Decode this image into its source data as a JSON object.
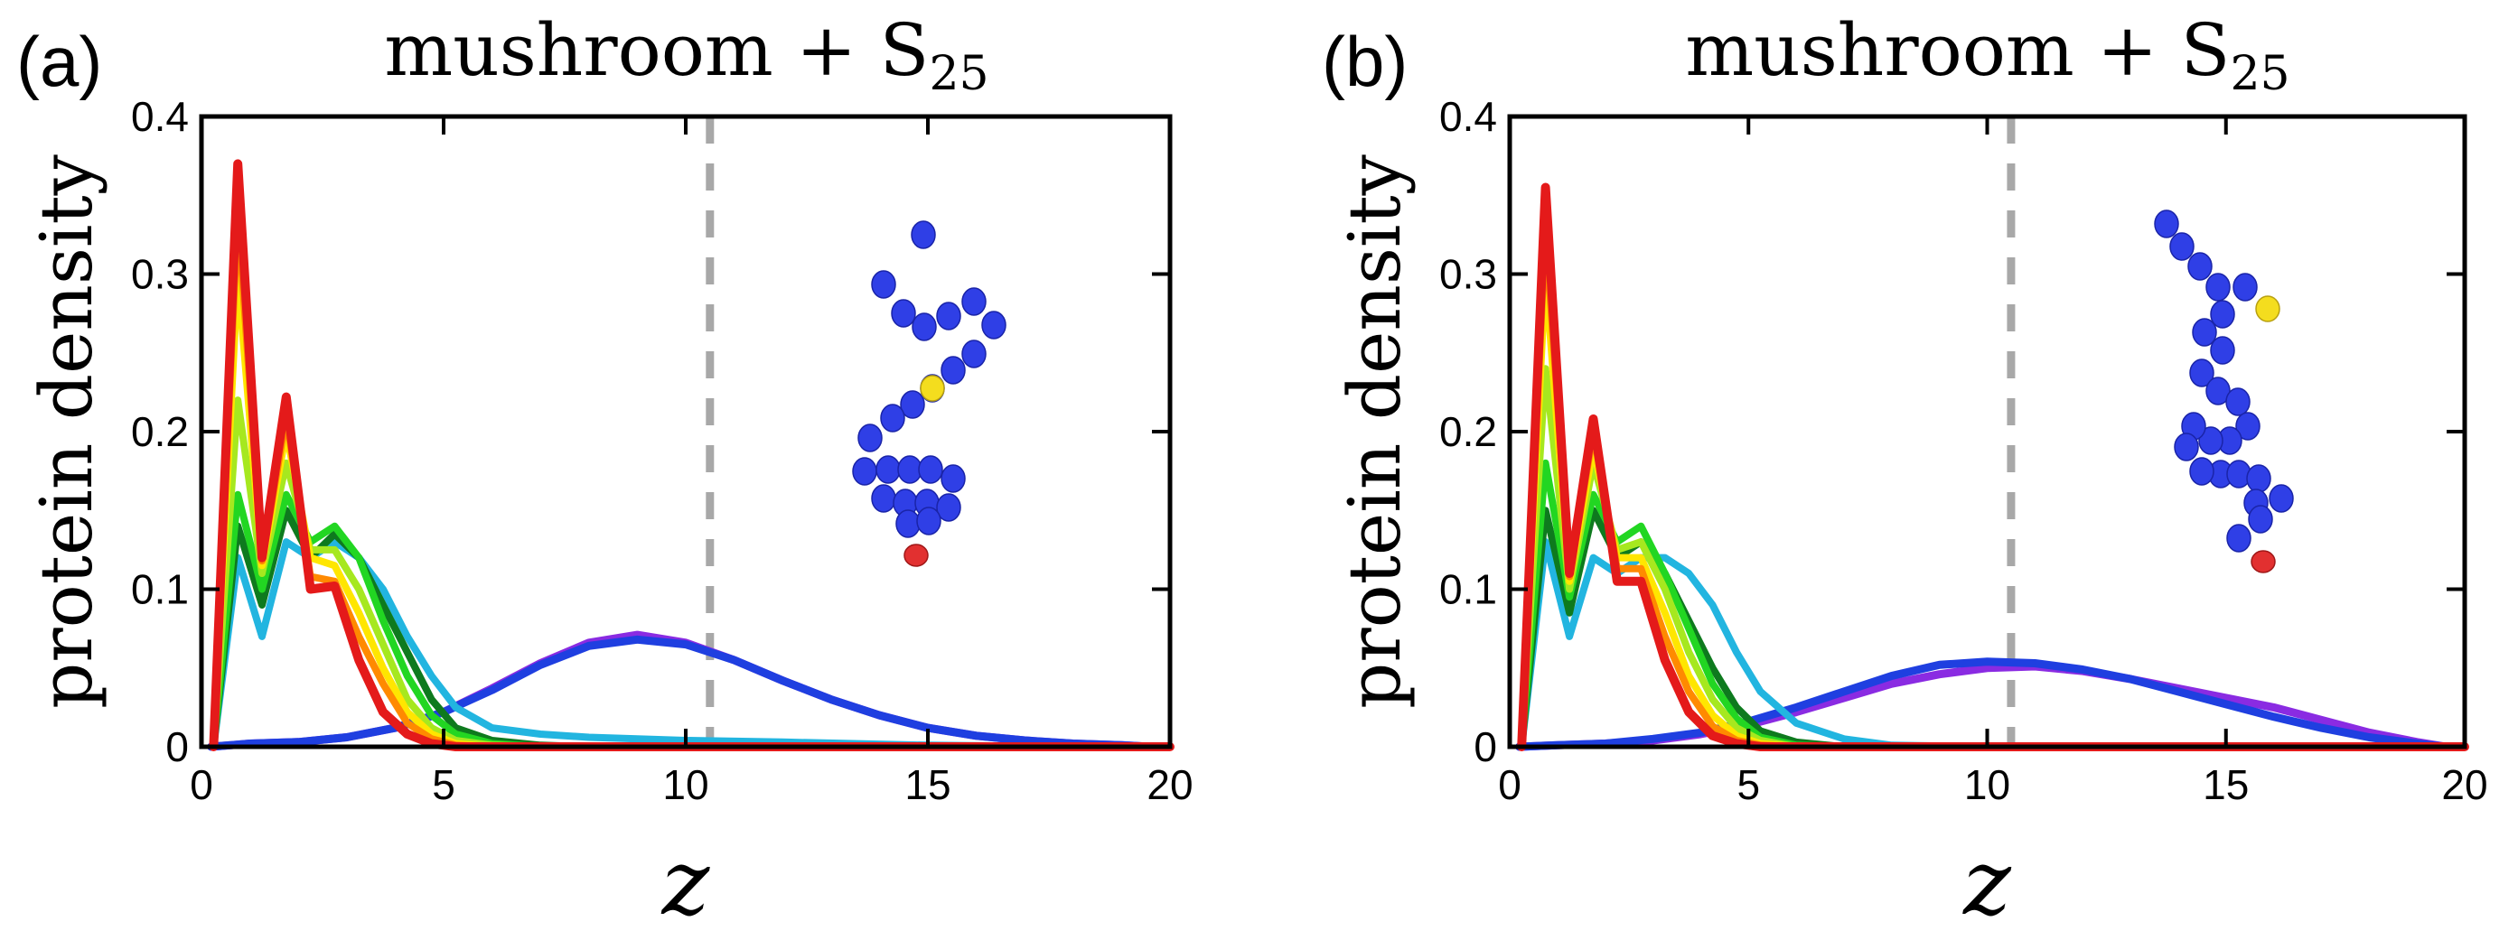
{
  "chart_data": [
    {
      "type": "line",
      "panel_label": "(a)",
      "title": "mushroom + S",
      "title_subscript": "25",
      "xlabel": "z",
      "ylabel": "protein density",
      "xlim": [
        0,
        20
      ],
      "ylim": [
        0,
        0.4
      ],
      "xticks": [
        0,
        5,
        10,
        15,
        20
      ],
      "yticks": [
        0,
        0.1,
        0.2,
        0.3,
        0.4
      ],
      "xtick_labels": [
        "0",
        "5",
        "10",
        "15",
        "20"
      ],
      "ytick_labels": [
        "0",
        "0.1",
        "0.2",
        "0.3",
        "0.4"
      ],
      "reference_line_x": 10.5,
      "molecule_inset": "mushroom",
      "series": [
        {
          "color": "#8a2be2",
          "x": [
            0.2,
            1,
            2,
            3,
            4,
            5,
            6,
            7,
            8,
            9,
            10,
            11,
            12,
            13,
            14,
            15,
            16,
            17,
            18,
            19,
            19.6
          ],
          "y": [
            0,
            0.002,
            0.003,
            0.006,
            0.012,
            0.022,
            0.037,
            0.053,
            0.066,
            0.071,
            0.066,
            0.055,
            0.042,
            0.03,
            0.02,
            0.012,
            0.007,
            0.004,
            0.002,
            0.001,
            0
          ]
        },
        {
          "color": "#1f3fe0",
          "x": [
            0.2,
            1,
            2,
            3,
            4,
            5,
            6,
            7,
            8,
            9,
            10,
            11,
            12,
            13,
            14,
            15,
            16,
            17,
            18,
            19,
            19.6
          ],
          "y": [
            0,
            0.002,
            0.003,
            0.006,
            0.012,
            0.022,
            0.036,
            0.052,
            0.064,
            0.068,
            0.065,
            0.055,
            0.042,
            0.03,
            0.02,
            0.012,
            0.007,
            0.004,
            0.002,
            0.001,
            0
          ]
        },
        {
          "color": "#22b5e0",
          "x": [
            0.25,
            0.75,
            1.25,
            1.75,
            2.25,
            2.75,
            3.25,
            3.75,
            4.25,
            4.75,
            5.25,
            6,
            7,
            8,
            10,
            12,
            15,
            18,
            20
          ],
          "y": [
            0,
            0.12,
            0.07,
            0.13,
            0.12,
            0.13,
            0.12,
            0.1,
            0.07,
            0.045,
            0.025,
            0.012,
            0.008,
            0.006,
            0.004,
            0.003,
            0.001,
            0,
            0
          ]
        },
        {
          "color": "#0e7a1e",
          "x": [
            0.25,
            0.75,
            1.25,
            1.75,
            2.25,
            2.75,
            3.25,
            3.75,
            4.25,
            4.75,
            5.25,
            6,
            7,
            8,
            10,
            20
          ],
          "y": [
            0,
            0.14,
            0.09,
            0.15,
            0.12,
            0.135,
            0.12,
            0.09,
            0.06,
            0.03,
            0.012,
            0.004,
            0.001,
            0,
            0,
            0
          ]
        },
        {
          "color": "#22d622",
          "x": [
            0.25,
            0.75,
            1.25,
            1.75,
            2.25,
            2.75,
            3.25,
            3.75,
            4.25,
            4.75,
            5.25,
            6,
            7,
            8,
            10,
            20
          ],
          "y": [
            0,
            0.16,
            0.1,
            0.16,
            0.13,
            0.14,
            0.12,
            0.08,
            0.045,
            0.02,
            0.008,
            0.002,
            0,
            0,
            0,
            0
          ]
        },
        {
          "color": "#a6e81f",
          "x": [
            0.25,
            0.75,
            1.25,
            1.75,
            2.25,
            2.75,
            3.25,
            3.75,
            4.25,
            4.75,
            5.25,
            6,
            7,
            8,
            10,
            20
          ],
          "y": [
            0,
            0.22,
            0.11,
            0.18,
            0.125,
            0.125,
            0.1,
            0.065,
            0.03,
            0.012,
            0.004,
            0.001,
            0,
            0,
            0,
            0
          ]
        },
        {
          "color": "#ffe600",
          "x": [
            0.25,
            0.75,
            1.25,
            1.75,
            2.25,
            2.75,
            3.25,
            3.75,
            4.25,
            4.75,
            5.25,
            6,
            7,
            8,
            10,
            20
          ],
          "y": [
            0,
            0.3,
            0.115,
            0.2,
            0.12,
            0.115,
            0.085,
            0.05,
            0.022,
            0.008,
            0.002,
            0,
            0,
            0,
            0,
            0
          ]
        },
        {
          "color": "#ff8a00",
          "x": [
            0.25,
            0.75,
            1.25,
            1.75,
            2.25,
            2.75,
            3.25,
            3.75,
            4.25,
            4.75,
            5.25,
            6,
            7,
            8,
            10,
            20
          ],
          "y": [
            0,
            0.34,
            0.118,
            0.21,
            0.108,
            0.105,
            0.07,
            0.04,
            0.015,
            0.005,
            0.001,
            0,
            0,
            0,
            0,
            0
          ]
        },
        {
          "color": "#e41a1a",
          "x": [
            0.25,
            0.75,
            1.25,
            1.75,
            2.25,
            2.75,
            3.25,
            3.75,
            4.25,
            4.75,
            5.25,
            6,
            7,
            8,
            10,
            20
          ],
          "y": [
            0,
            0.37,
            0.12,
            0.222,
            0.1,
            0.102,
            0.055,
            0.022,
            0.008,
            0.002,
            0,
            0,
            0,
            0,
            0,
            0
          ]
        }
      ]
    },
    {
      "type": "line",
      "panel_label": "(b)",
      "title": "mushroom + S",
      "title_subscript": "25",
      "xlabel": "z",
      "ylabel": "protein density",
      "xlim": [
        0,
        20
      ],
      "ylim": [
        0,
        0.4
      ],
      "xticks": [
        0,
        5,
        10,
        15,
        20
      ],
      "yticks": [
        0,
        0.1,
        0.2,
        0.3,
        0.4
      ],
      "xtick_labels": [
        "0",
        "5",
        "10",
        "15",
        "20"
      ],
      "ytick_labels": [
        "0",
        "0.1",
        "0.2",
        "0.3",
        "0.4"
      ],
      "reference_line_x": 10.5,
      "molecule_inset": "brush",
      "series": [
        {
          "color": "#8a2be2",
          "x": [
            0.2,
            1,
            2,
            3,
            4,
            5,
            6,
            7,
            8,
            9,
            10,
            11,
            12,
            13,
            14,
            15,
            16,
            17,
            18,
            19,
            19.6
          ],
          "y": [
            0,
            0.001,
            0.002,
            0.004,
            0.008,
            0.014,
            0.022,
            0.031,
            0.04,
            0.046,
            0.05,
            0.051,
            0.048,
            0.043,
            0.037,
            0.031,
            0.025,
            0.017,
            0.009,
            0.003,
            0
          ]
        },
        {
          "color": "#1f3fe0",
          "x": [
            0.2,
            1,
            2,
            3,
            4,
            5,
            6,
            7,
            8,
            9,
            10,
            11,
            12,
            13,
            14,
            15,
            16,
            17,
            18,
            19,
            19.6
          ],
          "y": [
            0,
            0.001,
            0.002,
            0.005,
            0.009,
            0.016,
            0.025,
            0.035,
            0.045,
            0.052,
            0.054,
            0.053,
            0.049,
            0.043,
            0.035,
            0.027,
            0.019,
            0.012,
            0.006,
            0.002,
            0
          ]
        },
        {
          "color": "#22b5e0",
          "x": [
            0.25,
            0.75,
            1.25,
            1.75,
            2.25,
            2.75,
            3.25,
            3.75,
            4.25,
            4.75,
            5.25,
            6,
            7,
            8,
            10,
            20
          ],
          "y": [
            0,
            0.13,
            0.07,
            0.12,
            0.11,
            0.12,
            0.12,
            0.11,
            0.09,
            0.06,
            0.035,
            0.015,
            0.005,
            0.001,
            0,
            0
          ]
        },
        {
          "color": "#0e7a1e",
          "x": [
            0.25,
            0.75,
            1.25,
            1.75,
            2.25,
            2.75,
            3.25,
            3.75,
            4.25,
            4.75,
            5.25,
            6,
            7,
            8,
            10,
            20
          ],
          "y": [
            0,
            0.15,
            0.085,
            0.15,
            0.12,
            0.13,
            0.11,
            0.08,
            0.05,
            0.025,
            0.01,
            0.003,
            0,
            0,
            0,
            0
          ]
        },
        {
          "color": "#22d622",
          "x": [
            0.25,
            0.75,
            1.25,
            1.75,
            2.25,
            2.75,
            3.25,
            3.75,
            4.25,
            4.75,
            5.25,
            6,
            7,
            8,
            10,
            20
          ],
          "y": [
            0,
            0.18,
            0.095,
            0.16,
            0.13,
            0.14,
            0.11,
            0.075,
            0.04,
            0.018,
            0.006,
            0.001,
            0,
            0,
            0,
            0
          ]
        },
        {
          "color": "#a6e81f",
          "x": [
            0.25,
            0.75,
            1.25,
            1.75,
            2.25,
            2.75,
            3.25,
            3.75,
            4.25,
            4.75,
            5.25,
            6,
            7,
            8,
            10,
            20
          ],
          "y": [
            0,
            0.24,
            0.1,
            0.18,
            0.125,
            0.13,
            0.1,
            0.06,
            0.03,
            0.012,
            0.004,
            0,
            0,
            0,
            0,
            0
          ]
        },
        {
          "color": "#ffe600",
          "x": [
            0.25,
            0.75,
            1.25,
            1.75,
            2.25,
            2.75,
            3.25,
            3.75,
            4.25,
            4.75,
            5.25,
            6,
            7,
            8,
            10,
            20
          ],
          "y": [
            0,
            0.3,
            0.105,
            0.19,
            0.12,
            0.12,
            0.085,
            0.045,
            0.02,
            0.007,
            0.002,
            0,
            0,
            0,
            0,
            0
          ]
        },
        {
          "color": "#ff8a00",
          "x": [
            0.25,
            0.75,
            1.25,
            1.75,
            2.25,
            2.75,
            3.25,
            3.75,
            4.25,
            4.75,
            5.25,
            6,
            7,
            8,
            10,
            20
          ],
          "y": [
            0,
            0.33,
            0.108,
            0.2,
            0.113,
            0.113,
            0.07,
            0.035,
            0.013,
            0.004,
            0.001,
            0,
            0,
            0,
            0,
            0
          ]
        },
        {
          "color": "#e41a1a",
          "x": [
            0.25,
            0.75,
            1.25,
            1.75,
            2.25,
            2.75,
            3.25,
            3.75,
            4.25,
            4.75,
            5.25,
            6,
            7,
            8,
            10,
            20
          ],
          "y": [
            0,
            0.355,
            0.11,
            0.208,
            0.105,
            0.105,
            0.055,
            0.022,
            0.007,
            0.002,
            0,
            0,
            0,
            0,
            0,
            0
          ]
        }
      ]
    }
  ]
}
